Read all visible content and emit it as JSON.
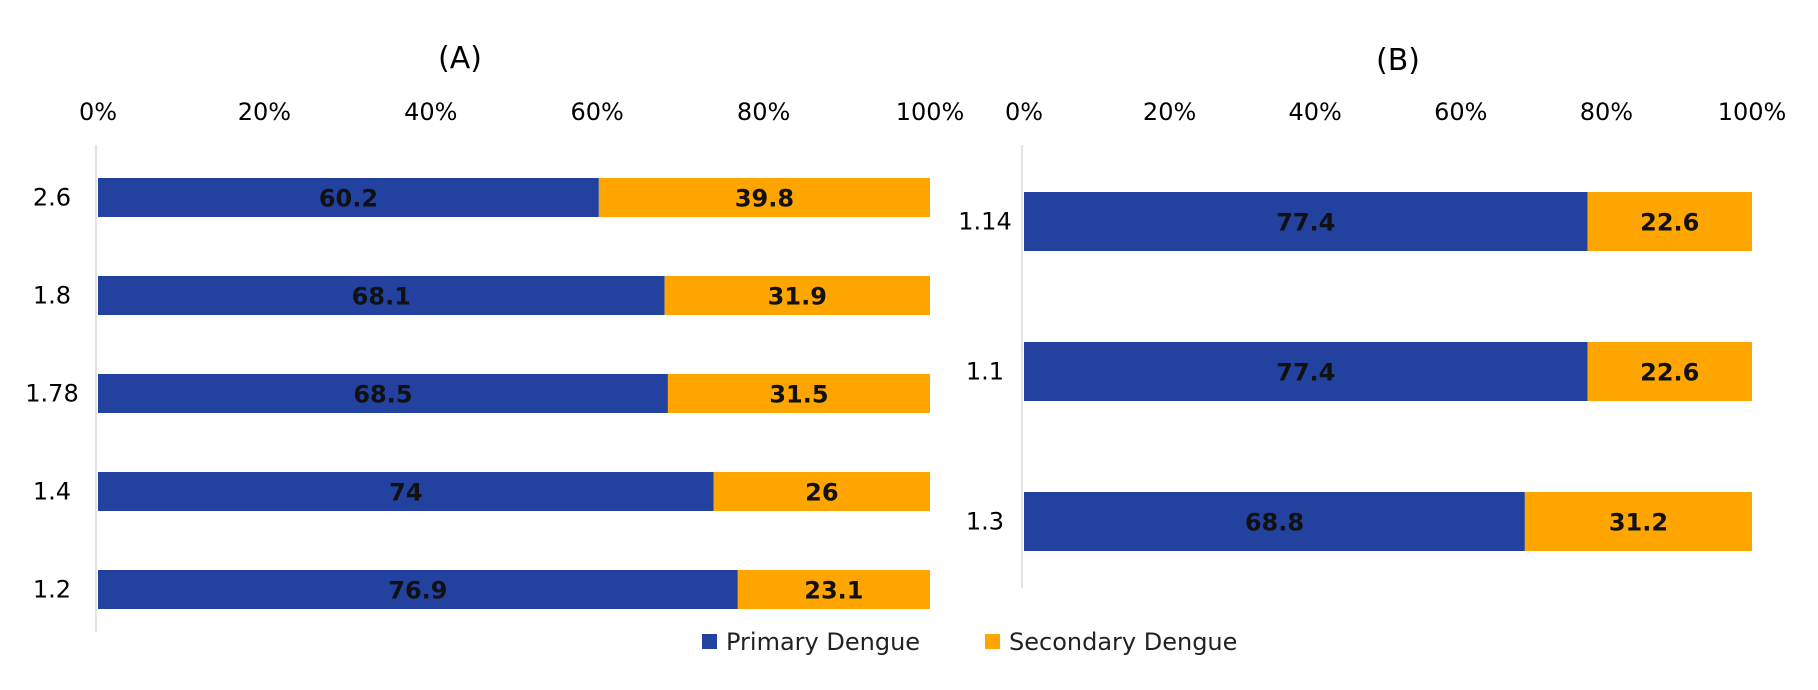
{
  "chart_data": [
    {
      "type": "bar",
      "orientation": "horizontal",
      "stacked": true,
      "percent": true,
      "title": "(A)",
      "categories": [
        "2.6",
        "1.8",
        "1.78",
        "1.4",
        "1.2"
      ],
      "series": [
        {
          "name": "Primary Dengue",
          "color": "#2342a0",
          "values": [
            60.2,
            68.1,
            68.5,
            74,
            76.9
          ]
        },
        {
          "name": "Secondary Dengue",
          "color": "#ffa500",
          "values": [
            39.8,
            31.9,
            31.5,
            26,
            23.1
          ]
        }
      ],
      "xticks": [
        "0%",
        "20%",
        "40%",
        "60%",
        "80%",
        "100%"
      ],
      "xlim": [
        0,
        100
      ],
      "axis_position": "top",
      "grid": false
    },
    {
      "type": "bar",
      "orientation": "horizontal",
      "stacked": true,
      "percent": true,
      "title": "(B)",
      "categories": [
        "1.14",
        "1.1",
        "1.3"
      ],
      "series": [
        {
          "name": "Primary Dengue",
          "color": "#2342a0",
          "values": [
            77.4,
            77.4,
            68.8
          ]
        },
        {
          "name": "Secondary Dengue",
          "color": "#ffa500",
          "values": [
            22.6,
            22.6,
            31.2
          ]
        }
      ],
      "xticks": [
        "0%",
        "20%",
        "40%",
        "60%",
        "80%",
        "100%"
      ],
      "xlim": [
        0,
        100
      ],
      "axis_position": "top",
      "grid": false
    }
  ],
  "legend": {
    "placement": "bottom-center",
    "items": [
      {
        "name": "Primary Dengue",
        "color": "#2342a0"
      },
      {
        "name": "Secondary Dengue",
        "color": "#ffa500"
      }
    ]
  }
}
